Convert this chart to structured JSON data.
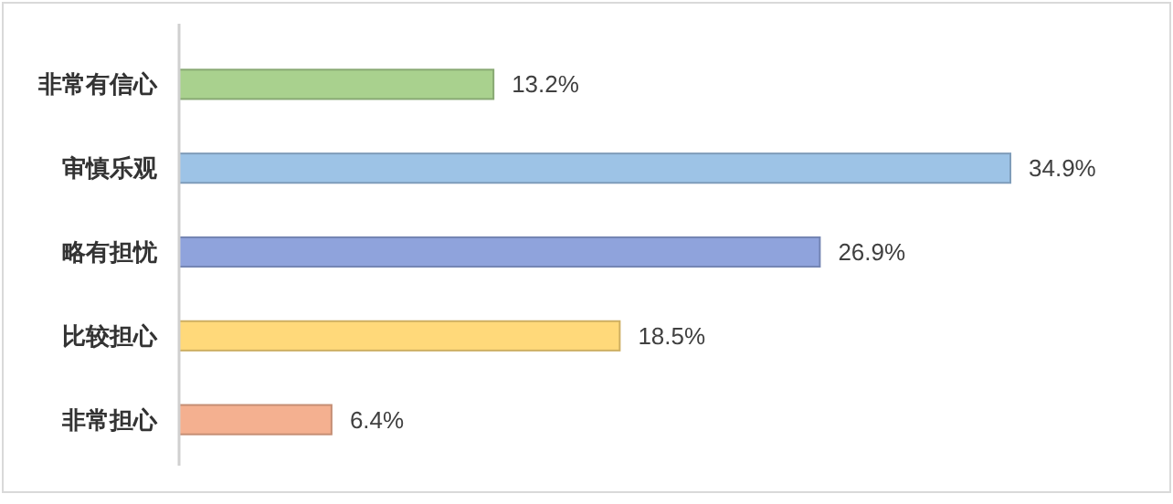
{
  "chart_data": {
    "type": "bar",
    "orientation": "horizontal",
    "categories": [
      "非常有信心",
      "审慎乐观",
      "略有担忧",
      "比较担心",
      "非常担心"
    ],
    "values": [
      13.2,
      34.9,
      26.9,
      18.5,
      6.4
    ],
    "colors": [
      "#a9d18e",
      "#9dc3e6",
      "#8fa3dc",
      "#ffd97a",
      "#f4b090"
    ],
    "value_labels": [
      "13.2%",
      "34.9%",
      "26.9%",
      "18.5%",
      "6.4%"
    ],
    "data_labels": false
  }
}
